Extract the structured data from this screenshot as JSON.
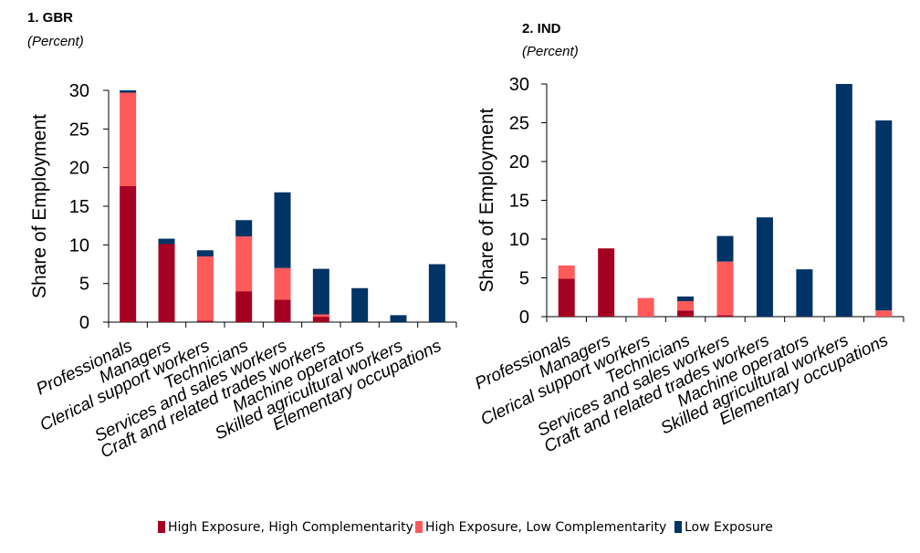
{
  "chart_data": [
    {
      "type": "bar",
      "stacked": true,
      "title": "1. GBR",
      "subtitle": "(Percent)",
      "xlabel": "",
      "ylabel": "Share of Employment",
      "ylim": [
        0,
        30
      ],
      "yticks": [
        0,
        5,
        10,
        15,
        20,
        25,
        30
      ],
      "categories": [
        "Professionals",
        "Managers",
        "Clerical support workers",
        "Technicians",
        "Services and sales workers",
        "Craft and related trades workers",
        "Machine operators",
        "Skilled agricultural workers",
        "Elementary occupations"
      ],
      "series": [
        {
          "name": "High Exposure, High Complementarity",
          "color": "#a50021",
          "values": [
            17.6,
            10.1,
            0.2,
            4.0,
            2.9,
            0.7,
            0.0,
            0.0,
            0.0
          ]
        },
        {
          "name": "High Exposure, Low Complementarity",
          "color": "#ff5a5a",
          "values": [
            12.1,
            0.0,
            8.3,
            7.1,
            4.1,
            0.3,
            0.0,
            0.0,
            0.0
          ]
        },
        {
          "name": "Low Exposure",
          "color": "#003366",
          "values": [
            0.3,
            0.7,
            0.8,
            2.1,
            9.8,
            5.9,
            4.4,
            0.9,
            7.5
          ]
        }
      ]
    },
    {
      "type": "bar",
      "stacked": true,
      "title": "2. IND",
      "subtitle": "(Percent)",
      "xlabel": "",
      "ylabel": "Share of Employment",
      "ylim": [
        0,
        30
      ],
      "yticks": [
        0,
        5,
        10,
        15,
        20,
        25,
        30
      ],
      "categories": [
        "Professionals",
        "Managers",
        "Clerical support workers",
        "Technicians",
        "Services and sales workers",
        "Craft and related trades workers",
        "Machine operators",
        "Skilled agricultural workers",
        "Elementary occupations"
      ],
      "series": [
        {
          "name": "High Exposure, High Complementarity",
          "color": "#a50021",
          "values": [
            4.9,
            8.8,
            0.0,
            0.8,
            0.2,
            0.0,
            0.0,
            0.0,
            0.0
          ]
        },
        {
          "name": "High Exposure, Low Complementarity",
          "color": "#ff5a5a",
          "values": [
            1.7,
            0.0,
            2.4,
            1.2,
            6.9,
            0.0,
            0.0,
            0.0,
            0.8
          ]
        },
        {
          "name": "Low Exposure",
          "color": "#003366",
          "values": [
            0.0,
            0.0,
            0.0,
            0.6,
            3.3,
            12.8,
            6.1,
            30.0,
            24.5
          ]
        }
      ]
    }
  ],
  "legend": {
    "position": "bottom",
    "items": [
      {
        "label": "High Exposure, High Complementarity",
        "color": "#a50021"
      },
      {
        "label": "High Exposure, Low Complementarity",
        "color": "#ff5a5a"
      },
      {
        "label": "Low Exposure",
        "color": "#003366"
      }
    ]
  }
}
